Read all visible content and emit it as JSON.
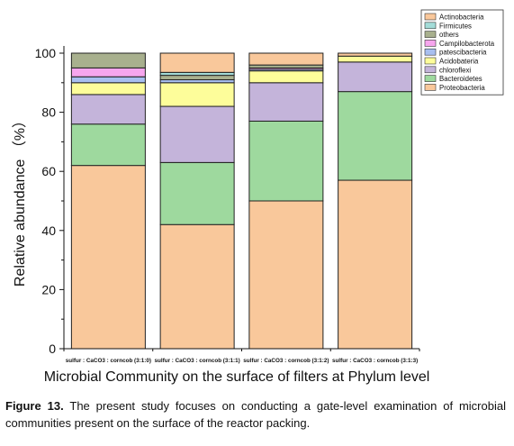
{
  "chart_data": {
    "type": "bar",
    "stacked": true,
    "xlabel": "Microbial Community on the surface of filters at Phylum level",
    "ylabel": "Relative abundance （%）",
    "ylim": [
      0,
      100
    ],
    "yticks": [
      0,
      20,
      40,
      60,
      80,
      100
    ],
    "grid": false,
    "legend_position": "top-right",
    "categories": [
      "sulfur : CaCO3 : corncob (3:1:0)",
      "sulfur : CaCO3 : corncob (3:1:1)",
      "sulfur : CaCO3 : corncob (3:1:2)",
      "sulfur : CaCO3 : corncob (3:1:3)"
    ],
    "series": [
      {
        "name": "Proteobacteria",
        "color": "#f9c89b",
        "values": [
          62,
          42,
          50,
          57
        ]
      },
      {
        "name": "Bacteroidetes",
        "color": "#9ed99e",
        "values": [
          14,
          21,
          27,
          30
        ]
      },
      {
        "name": "chloroflexi",
        "color": "#c4b4da",
        "values": [
          10,
          19,
          13,
          10
        ]
      },
      {
        "name": "Acidobateria",
        "color": "#fdfd9a",
        "values": [
          4,
          8,
          4,
          2
        ]
      },
      {
        "name": "patescibacteria",
        "color": "#a8bff0",
        "values": [
          2,
          1,
          0.5,
          0
        ]
      },
      {
        "name": "Campilobacterota",
        "color": "#f7a6ee",
        "values": [
          3,
          0,
          0.5,
          0
        ]
      },
      {
        "name": "others",
        "color": "#a8b08e",
        "values": [
          5,
          1.5,
          1,
          0
        ]
      },
      {
        "name": "Firmicutes",
        "color": "#a3dcd8",
        "values": [
          0,
          1,
          0,
          0
        ]
      },
      {
        "name": "Actinobacteria",
        "color": "#f9c89b",
        "values": [
          0,
          6.5,
          4,
          1
        ]
      }
    ],
    "legend_order": [
      "Actinobacteria",
      "Firmicutes",
      "others",
      "Campilobacterota",
      "patescibacteria",
      "Acidobateria",
      "chloroflexi",
      "Bacteroidetes",
      "Proteobacteria"
    ]
  },
  "caption": {
    "label": "Figure 13.",
    "text": " The present study focuses on conducting a gate-level examination of microbial communities present on the surface of the reactor packing."
  }
}
